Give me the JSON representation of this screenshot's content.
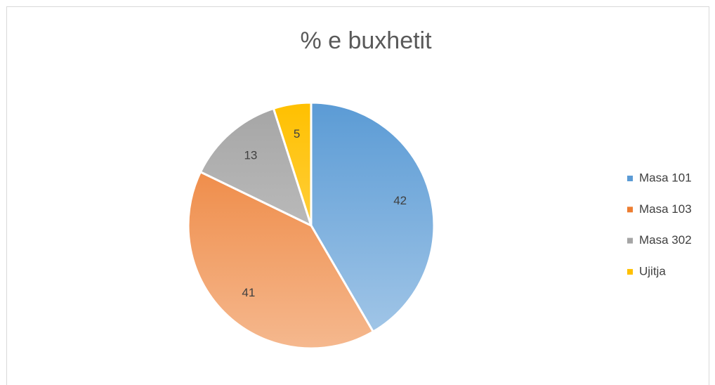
{
  "chart_data": {
    "type": "pie",
    "title": "% e buxhetit",
    "categories": [
      "Masa 101",
      "Masa 103",
      "Masa 302",
      "Ujitja"
    ],
    "values": [
      42,
      41,
      13,
      5
    ],
    "colors": [
      "#5b9bd5",
      "#ed7d31",
      "#a5a5a5",
      "#ffc000"
    ],
    "legend": "right"
  }
}
